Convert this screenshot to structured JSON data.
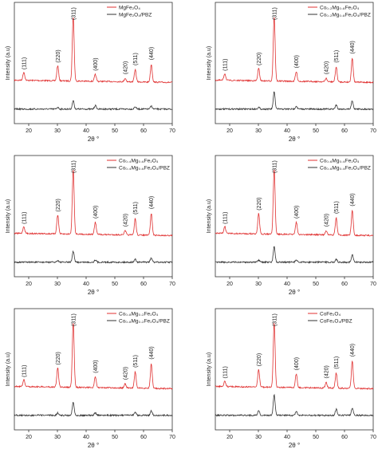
{
  "chart_data": [
    {
      "type": "line",
      "xlabel": "2θ °",
      "ylabel": "Intensity (a.u)",
      "xlim": [
        15,
        70
      ],
      "x_ticks": [
        "20",
        "30",
        "40",
        "50",
        "60",
        "70"
      ],
      "series": [
        {
          "name": "MgFe₂O₄",
          "color": "#e03030"
        },
        {
          "name": "MgFe₂O₄/PBZ",
          "color": "#333333"
        }
      ],
      "peaks": [
        {
          "label": "(111)",
          "x": 18.3,
          "red": 0.12,
          "black": 0.0
        },
        {
          "label": "(220)",
          "x": 30.1,
          "red": 0.22,
          "black": 0.03
        },
        {
          "label": "(311)",
          "x": 35.5,
          "red": 0.95,
          "black": 0.14
        },
        {
          "label": "(400)",
          "x": 43.2,
          "red": 0.1,
          "black": 0.06
        },
        {
          "label": "(420)",
          "x": 53.6,
          "red": 0.05,
          "black": 0.0
        },
        {
          "label": "(511)",
          "x": 57.1,
          "red": 0.18,
          "black": 0.04
        },
        {
          "label": "(440)",
          "x": 62.7,
          "red": 0.26,
          "black": 0.05
        }
      ]
    },
    {
      "type": "line",
      "xlabel": "2θ °",
      "ylabel": "Intensity (a.u)",
      "xlim": [
        15,
        70
      ],
      "x_ticks": [
        "20",
        "30",
        "40",
        "50",
        "60",
        "70"
      ],
      "series": [
        {
          "name": "Co₀.₂Mg₀.₈Fe₂O₄",
          "color": "#e03030"
        },
        {
          "name": "Co₀.₂Mg₀.₈Fe₂O₄/PBZ",
          "color": "#333333"
        }
      ],
      "peaks": [
        {
          "label": "(111)",
          "x": 18.3,
          "red": 0.1,
          "black": 0.0
        },
        {
          "label": "(220)",
          "x": 30.1,
          "red": 0.18,
          "black": 0.03
        },
        {
          "label": "(311)",
          "x": 35.5,
          "red": 0.95,
          "black": 0.28
        },
        {
          "label": "(400)",
          "x": 43.2,
          "red": 0.14,
          "black": 0.05
        },
        {
          "label": "(420)",
          "x": 53.6,
          "red": 0.05,
          "black": 0.0
        },
        {
          "label": "(511)",
          "x": 57.1,
          "red": 0.22,
          "black": 0.07
        },
        {
          "label": "(440)",
          "x": 62.7,
          "red": 0.35,
          "black": 0.14
        }
      ]
    },
    {
      "type": "line",
      "xlabel": "2θ °",
      "ylabel": "Intensity (a.u)",
      "xlim": [
        15,
        70
      ],
      "x_ticks": [
        "20",
        "30",
        "40",
        "50",
        "60",
        "70"
      ],
      "series": [
        {
          "name": "Co₀.₄Mg₀.₆Fe₂O₄",
          "color": "#e03030"
        },
        {
          "name": "Co₀.₄Mg₀.₆Fe₂O₄/PBZ",
          "color": "#333333"
        }
      ],
      "peaks": [
        {
          "label": "(111)",
          "x": 18.3,
          "red": 0.1,
          "black": 0.0
        },
        {
          "label": "(220)",
          "x": 30.1,
          "red": 0.28,
          "black": 0.03
        },
        {
          "label": "(311)",
          "x": 35.5,
          "red": 0.95,
          "black": 0.18
        },
        {
          "label": "(400)",
          "x": 43.2,
          "red": 0.18,
          "black": 0.04
        },
        {
          "label": "(420)",
          "x": 53.6,
          "red": 0.06,
          "black": 0.0
        },
        {
          "label": "(511)",
          "x": 57.1,
          "red": 0.24,
          "black": 0.05
        },
        {
          "label": "(440)",
          "x": 62.7,
          "red": 0.32,
          "black": 0.07
        }
      ]
    },
    {
      "type": "line",
      "xlabel": "2θ °",
      "ylabel": "Intensity (a.u)",
      "xlim": [
        15,
        70
      ],
      "x_ticks": [
        "20",
        "30",
        "40",
        "50",
        "60",
        "70"
      ],
      "series": [
        {
          "name": "Co₀.₆Mg₀.₄Fe₂O₄",
          "color": "#e03030"
        },
        {
          "name": "Co₀.₆Mg₀.₄Fe₂O₄/PBZ",
          "color": "#333333"
        }
      ],
      "peaks": [
        {
          "label": "(111)",
          "x": 18.3,
          "red": 0.1,
          "black": 0.0
        },
        {
          "label": "(220)",
          "x": 30.1,
          "red": 0.3,
          "black": 0.03
        },
        {
          "label": "(311)",
          "x": 35.5,
          "red": 0.95,
          "black": 0.26
        },
        {
          "label": "(400)",
          "x": 43.2,
          "red": 0.18,
          "black": 0.04
        },
        {
          "label": "(420)",
          "x": 53.6,
          "red": 0.06,
          "black": 0.0
        },
        {
          "label": "(511)",
          "x": 57.1,
          "red": 0.25,
          "black": 0.05
        },
        {
          "label": "(440)",
          "x": 62.7,
          "red": 0.36,
          "black": 0.12
        }
      ]
    },
    {
      "type": "line",
      "xlabel": "2θ °",
      "ylabel": "Intensity (a.u)",
      "xlim": [
        15,
        70
      ],
      "x_ticks": [
        "20",
        "30",
        "40",
        "50",
        "60",
        "70"
      ],
      "series": [
        {
          "name": "Co₀.₈Mg₀.₂Fe₂O₄",
          "color": "#e03030"
        },
        {
          "name": "Co₀.₈Mg₀.₂Fe₂O₄/PBZ",
          "color": "#333333"
        }
      ],
      "peaks": [
        {
          "label": "(111)",
          "x": 18.3,
          "red": 0.1,
          "black": 0.0
        },
        {
          "label": "(220)",
          "x": 30.1,
          "red": 0.28,
          "black": 0.04
        },
        {
          "label": "(311)",
          "x": 35.5,
          "red": 0.95,
          "black": 0.22
        },
        {
          "label": "(400)",
          "x": 43.2,
          "red": 0.16,
          "black": 0.04
        },
        {
          "label": "(420)",
          "x": 53.6,
          "red": 0.06,
          "black": 0.0
        },
        {
          "label": "(511)",
          "x": 57.1,
          "red": 0.24,
          "black": 0.05
        },
        {
          "label": "(440)",
          "x": 62.7,
          "red": 0.36,
          "black": 0.07
        }
      ]
    },
    {
      "type": "line",
      "xlabel": "2θ °",
      "ylabel": "Intensity (a.u)",
      "xlim": [
        15,
        70
      ],
      "x_ticks": [
        "20",
        "30",
        "40",
        "50",
        "60",
        "70"
      ],
      "series": [
        {
          "name": "CoFe₂O₄",
          "color": "#e03030"
        },
        {
          "name": "CoFe₂O₄/PBZ",
          "color": "#333333"
        }
      ],
      "peaks": [
        {
          "label": "(111)",
          "x": 18.3,
          "red": 0.08,
          "black": 0.0
        },
        {
          "label": "(220)",
          "x": 30.1,
          "red": 0.26,
          "black": 0.08
        },
        {
          "label": "(311)",
          "x": 35.5,
          "red": 0.95,
          "black": 0.34
        },
        {
          "label": "(400)",
          "x": 43.2,
          "red": 0.2,
          "black": 0.06
        },
        {
          "label": "(420)",
          "x": 53.6,
          "red": 0.08,
          "black": 0.0
        },
        {
          "label": "(511)",
          "x": 57.1,
          "red": 0.22,
          "black": 0.1
        },
        {
          "label": "(440)",
          "x": 62.7,
          "red": 0.4,
          "black": 0.12
        }
      ]
    }
  ]
}
